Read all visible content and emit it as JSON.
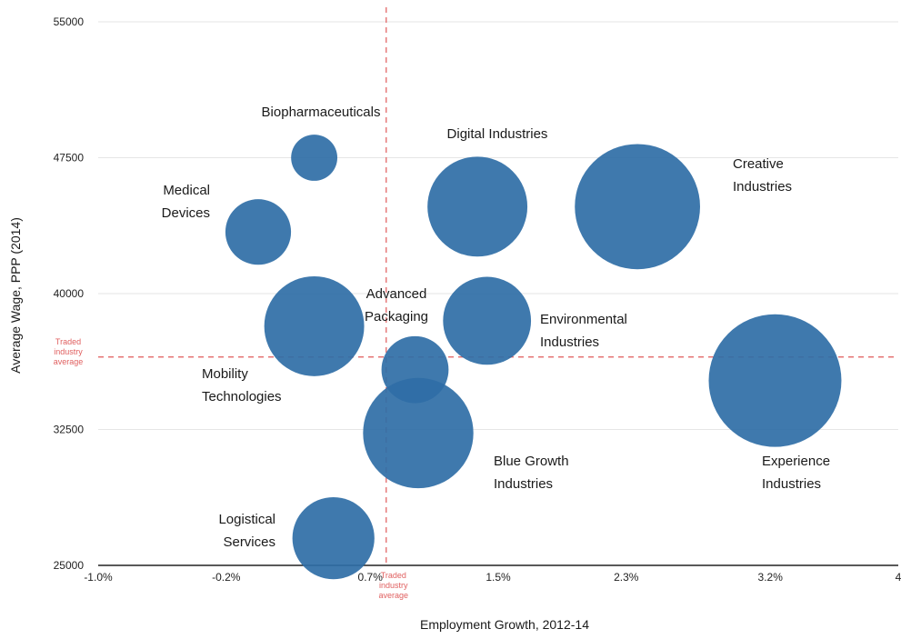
{
  "chart_data": {
    "type": "scatter",
    "subtype": "bubble",
    "xlabel": "Employment Growth, 2012-14",
    "ylabel": "Average Wage, PPP (2014)",
    "xlim": [
      -1.0,
      4.0
    ],
    "ylim": [
      25000,
      55000
    ],
    "x_ticks": [
      {
        "value": -1.0,
        "label": "-1.0%"
      },
      {
        "value": -0.2,
        "label": "-0.2%"
      },
      {
        "value": 0.7,
        "label": "0.7%"
      },
      {
        "value": 1.5,
        "label": "1.5%"
      },
      {
        "value": 2.3,
        "label": "2.3%"
      },
      {
        "value": 3.2,
        "label": "3.2%"
      },
      {
        "value": 4.0,
        "label": "4"
      }
    ],
    "y_ticks": [
      {
        "value": 25000,
        "label": "25000"
      },
      {
        "value": 32500,
        "label": "32500"
      },
      {
        "value": 40000,
        "label": "40000"
      },
      {
        "value": 47500,
        "label": "47500"
      },
      {
        "value": 55000,
        "label": "55000"
      }
    ],
    "grid": "horizontal",
    "bubble_color": "#2f6ea6",
    "reference_color": "#e05a5a",
    "reference_lines": {
      "x": {
        "value": 0.8,
        "label_lines": [
          "Traded",
          "industry",
          "average"
        ]
      },
      "y": {
        "value": 36500,
        "label_lines": [
          "Traded",
          "industry",
          "average"
        ]
      }
    },
    "points": [
      {
        "name": "Biopharmaceuticals",
        "label_lines": [
          "Biopharmaceuticals"
        ],
        "x": 0.35,
        "y": 47500,
        "size": 0.31
      },
      {
        "name": "Medical Devices",
        "label_lines": [
          "Medical",
          "Devices"
        ],
        "x": 0.0,
        "y": 43400,
        "size": 0.44
      },
      {
        "name": "Mobility Technologies",
        "label_lines": [
          "Mobility",
          "Technologies"
        ],
        "x": 0.35,
        "y": 38200,
        "size": 0.67
      },
      {
        "name": "Advanced Packaging",
        "label_lines": [
          "Advanced",
          "Packaging"
        ],
        "x": 0.98,
        "y": 35800,
        "size": 0.45
      },
      {
        "name": "Blue Growth Industries",
        "label_lines": [
          "Blue Growth",
          "Industries"
        ],
        "x": 1.0,
        "y": 32300,
        "size": 0.74
      },
      {
        "name": "Digital Industries",
        "label_lines": [
          "Digital Industries"
        ],
        "x": 1.37,
        "y": 44800,
        "size": 0.67
      },
      {
        "name": "Environmental Industries",
        "label_lines": [
          "Environmental",
          "Industries"
        ],
        "x": 1.43,
        "y": 38500,
        "size": 0.59
      },
      {
        "name": "Creative Industries",
        "label_lines": [
          "Creative",
          "Industries"
        ],
        "x": 2.37,
        "y": 44800,
        "size": 0.84
      },
      {
        "name": "Experience Industries",
        "label_lines": [
          "Experience",
          "Industries"
        ],
        "x": 3.23,
        "y": 35200,
        "size": 0.89
      },
      {
        "name": "Logistical Services",
        "label_lines": [
          "Logistical",
          "Services"
        ],
        "x": 0.47,
        "y": 26500,
        "size": 0.55
      }
    ]
  }
}
